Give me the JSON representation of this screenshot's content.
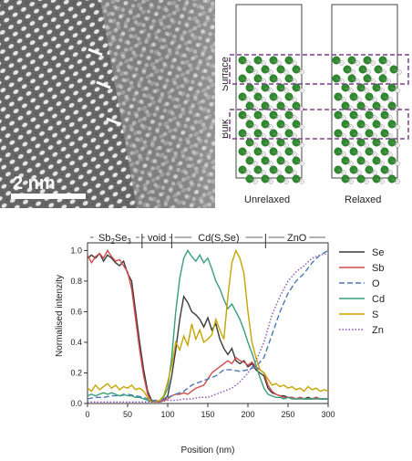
{
  "tem": {
    "scale_bar_label": "2 nm",
    "colors": {
      "background": "#6e6e6e",
      "bright": "#e8e8e8",
      "marker": "#ffffff"
    }
  },
  "structure": {
    "labels": {
      "surface": "Surface",
      "bulk": "Bulk",
      "unrelaxed": "Unrelaxed",
      "relaxed": "Relaxed"
    },
    "colors": {
      "atom_large": "#2e8b2e",
      "atom_small": "#f4f4f4",
      "box": "#7b3f8f"
    }
  },
  "chart_data": {
    "type": "line",
    "xlabel": "Position (nm)",
    "ylabel": "Normalised intenzity",
    "xlim": [
      0,
      300
    ],
    "ylim": [
      0,
      1.05
    ],
    "xticks": [
      0,
      50,
      100,
      150,
      200,
      250,
      300
    ],
    "yticks": [
      0.0,
      0.2,
      0.4,
      0.6,
      0.8,
      1.0
    ],
    "regions": [
      {
        "label_main": "Sb",
        "sub1": "2",
        "mid": "Se",
        "sub2": "3",
        "from": 0,
        "to": 68
      },
      {
        "label_main": "void",
        "from": 68,
        "to": 105
      },
      {
        "label_main": "Cd(S,Se)",
        "from": 105,
        "to": 222
      },
      {
        "label_main": "ZnO",
        "from": 222,
        "to": 300
      }
    ],
    "region_labels": [
      "Sb2Se3",
      "void",
      "Cd(S,Se)",
      "ZnO"
    ],
    "series": [
      {
        "name": "Se",
        "color": "#3a3a3a",
        "dash": "solid",
        "x": [
          0,
          5,
          10,
          15,
          20,
          25,
          30,
          35,
          40,
          45,
          50,
          55,
          60,
          65,
          70,
          75,
          80,
          85,
          90,
          95,
          100,
          105,
          110,
          115,
          120,
          125,
          130,
          135,
          140,
          145,
          150,
          155,
          160,
          165,
          170,
          175,
          180,
          185,
          190,
          195,
          200,
          205,
          210,
          215,
          220,
          225,
          230,
          235,
          240,
          245,
          250,
          255,
          260,
          265,
          270,
          275,
          280,
          285,
          290,
          295,
          300
        ],
        "y": [
          0.95,
          0.97,
          0.95,
          0.98,
          0.93,
          0.97,
          0.95,
          0.92,
          0.9,
          0.93,
          0.85,
          0.8,
          0.6,
          0.4,
          0.22,
          0.08,
          0.02,
          0.01,
          0.01,
          0.02,
          0.05,
          0.18,
          0.35,
          0.55,
          0.7,
          0.66,
          0.6,
          0.58,
          0.55,
          0.5,
          0.56,
          0.48,
          0.52,
          0.42,
          0.36,
          0.32,
          0.36,
          0.28,
          0.26,
          0.28,
          0.24,
          0.26,
          0.22,
          0.2,
          0.18,
          0.1,
          0.07,
          0.06,
          0.05,
          0.05,
          0.04,
          0.04,
          0.03,
          0.04,
          0.03,
          0.04,
          0.03,
          0.04,
          0.03,
          0.03,
          0.03
        ]
      },
      {
        "name": "Sb",
        "color": "#d24a4a",
        "dash": "solid",
        "x": [
          0,
          5,
          10,
          15,
          20,
          25,
          30,
          35,
          40,
          45,
          50,
          55,
          60,
          65,
          70,
          75,
          80,
          85,
          90,
          95,
          100,
          105,
          110,
          115,
          120,
          125,
          130,
          135,
          140,
          145,
          150,
          155,
          160,
          165,
          170,
          175,
          180,
          185,
          190,
          195,
          200,
          205,
          210,
          215,
          220,
          225,
          230,
          235,
          240,
          245,
          250,
          255,
          260,
          265,
          270,
          275,
          280,
          285,
          290,
          295,
          300
        ],
        "y": [
          0.97,
          0.92,
          0.96,
          0.98,
          0.95,
          1.0,
          0.96,
          0.93,
          0.94,
          0.9,
          0.86,
          0.75,
          0.55,
          0.35,
          0.18,
          0.06,
          0.01,
          0.01,
          0.01,
          0.02,
          0.03,
          0.05,
          0.06,
          0.06,
          0.07,
          0.06,
          0.08,
          0.1,
          0.11,
          0.12,
          0.16,
          0.2,
          0.22,
          0.24,
          0.26,
          0.28,
          0.26,
          0.3,
          0.28,
          0.27,
          0.25,
          0.27,
          0.24,
          0.22,
          0.2,
          0.12,
          0.08,
          0.06,
          0.05,
          0.04,
          0.04,
          0.04,
          0.03,
          0.04,
          0.03,
          0.03,
          0.03,
          0.04,
          0.03,
          0.03,
          0.03
        ]
      },
      {
        "name": "O",
        "color": "#4a78b8",
        "dash": "dashed",
        "x": [
          0,
          10,
          20,
          30,
          40,
          50,
          60,
          70,
          80,
          90,
          100,
          110,
          120,
          130,
          140,
          150,
          160,
          170,
          180,
          190,
          200,
          210,
          220,
          230,
          240,
          250,
          260,
          270,
          280,
          290,
          300
        ],
        "y": [
          0.03,
          0.04,
          0.04,
          0.05,
          0.05,
          0.06,
          0.05,
          0.04,
          0.02,
          0.02,
          0.04,
          0.06,
          0.08,
          0.12,
          0.14,
          0.16,
          0.18,
          0.22,
          0.22,
          0.21,
          0.22,
          0.24,
          0.3,
          0.45,
          0.6,
          0.72,
          0.8,
          0.85,
          0.92,
          0.97,
          1.0
        ]
      },
      {
        "name": "Cd",
        "color": "#3a9e7a",
        "dash": "solid",
        "x": [
          0,
          5,
          10,
          15,
          20,
          25,
          30,
          35,
          40,
          45,
          50,
          55,
          60,
          65,
          70,
          75,
          80,
          85,
          90,
          95,
          100,
          105,
          110,
          115,
          120,
          125,
          130,
          135,
          140,
          145,
          150,
          155,
          160,
          165,
          170,
          175,
          180,
          185,
          190,
          195,
          200,
          205,
          210,
          215,
          220,
          225,
          230,
          235,
          240,
          245,
          250,
          255,
          260,
          265,
          270,
          275,
          280,
          285,
          290,
          295,
          300
        ],
        "y": [
          0.05,
          0.06,
          0.05,
          0.06,
          0.07,
          0.06,
          0.07,
          0.06,
          0.05,
          0.06,
          0.05,
          0.05,
          0.04,
          0.04,
          0.03,
          0.02,
          0.01,
          0.01,
          0.02,
          0.04,
          0.1,
          0.3,
          0.6,
          0.82,
          0.95,
          1.0,
          0.96,
          0.93,
          0.97,
          0.92,
          0.95,
          0.88,
          0.8,
          0.75,
          0.68,
          0.62,
          0.65,
          0.6,
          0.55,
          0.48,
          0.4,
          0.33,
          0.25,
          0.17,
          0.1,
          0.06,
          0.05,
          0.04,
          0.04,
          0.03,
          0.04,
          0.03,
          0.03,
          0.03,
          0.03,
          0.03,
          0.03,
          0.03,
          0.03,
          0.03,
          0.03
        ]
      },
      {
        "name": "S",
        "color": "#c8a400",
        "dash": "solid",
        "x": [
          0,
          5,
          10,
          15,
          20,
          25,
          30,
          35,
          40,
          45,
          50,
          55,
          60,
          65,
          70,
          75,
          80,
          85,
          90,
          95,
          100,
          105,
          110,
          115,
          120,
          125,
          130,
          135,
          140,
          145,
          150,
          155,
          160,
          165,
          170,
          175,
          180,
          185,
          190,
          195,
          200,
          205,
          210,
          215,
          220,
          225,
          230,
          235,
          240,
          245,
          250,
          255,
          260,
          265,
          270,
          275,
          280,
          285,
          290,
          295,
          300
        ],
        "y": [
          0.1,
          0.08,
          0.12,
          0.09,
          0.11,
          0.13,
          0.1,
          0.12,
          0.09,
          0.11,
          0.1,
          0.12,
          0.09,
          0.1,
          0.08,
          0.04,
          0.01,
          0.01,
          0.02,
          0.05,
          0.14,
          0.25,
          0.4,
          0.35,
          0.44,
          0.38,
          0.52,
          0.42,
          0.48,
          0.4,
          0.42,
          0.45,
          0.55,
          0.48,
          0.42,
          0.7,
          0.92,
          1.0,
          0.95,
          0.85,
          0.6,
          0.4,
          0.3,
          0.22,
          0.2,
          0.16,
          0.12,
          0.13,
          0.11,
          0.12,
          0.1,
          0.11,
          0.09,
          0.1,
          0.08,
          0.11,
          0.09,
          0.1,
          0.08,
          0.09,
          0.08
        ]
      },
      {
        "name": "Zn",
        "color": "#8a52b8",
        "dash": "dotted",
        "x": [
          0,
          10,
          20,
          30,
          40,
          50,
          60,
          70,
          80,
          90,
          100,
          110,
          120,
          130,
          140,
          150,
          160,
          170,
          180,
          190,
          200,
          210,
          220,
          230,
          240,
          250,
          260,
          270,
          280,
          290,
          300
        ],
        "y": [
          0.01,
          0.01,
          0.01,
          0.01,
          0.01,
          0.01,
          0.01,
          0.01,
          0.01,
          0.01,
          0.02,
          0.02,
          0.03,
          0.03,
          0.04,
          0.04,
          0.06,
          0.08,
          0.1,
          0.14,
          0.2,
          0.28,
          0.4,
          0.58,
          0.7,
          0.8,
          0.86,
          0.9,
          0.95,
          0.97,
          0.98
        ]
      }
    ]
  }
}
